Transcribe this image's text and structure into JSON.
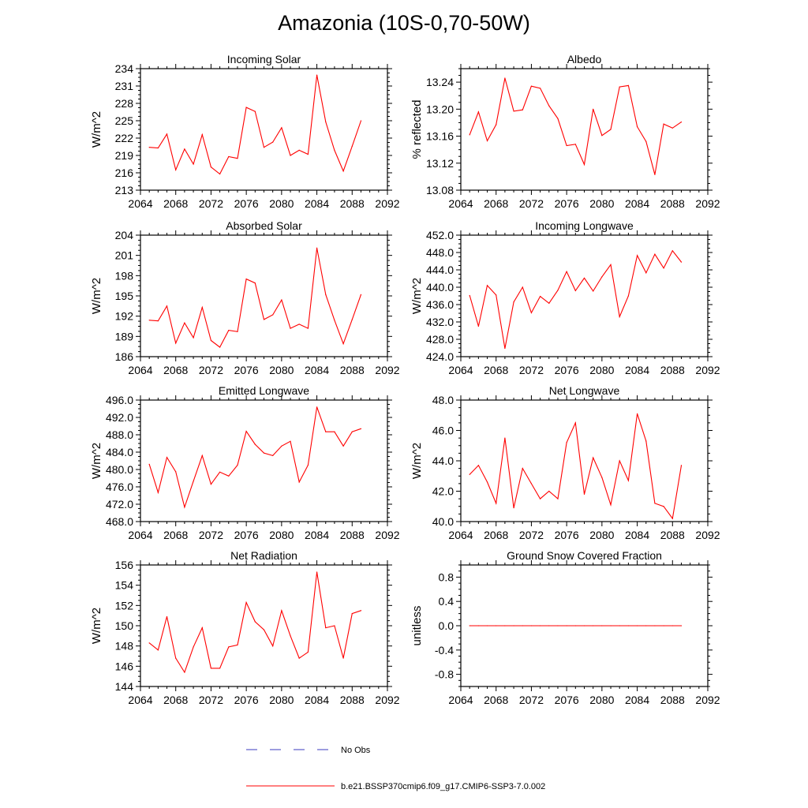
{
  "title": "Amazonia (10S-0,70-50W)",
  "colors": {
    "series": "#ff0000",
    "obs": "#3b3bbf",
    "axis": "#000000"
  },
  "legend": [
    {
      "label": "No Obs",
      "style": "dashed",
      "color": "#3b3bbf"
    },
    {
      "label": "b.e21.BSSP370cmip6.f09_g17.CMIP6-SSP3-7.0.002",
      "style": "solid",
      "color": "#ff0000"
    }
  ],
  "chart_data": [
    {
      "type": "line",
      "title": "Incoming Solar",
      "ylabel": "W/m^2",
      "xlim": [
        2064,
        2092
      ],
      "xticks": [
        2064,
        2068,
        2072,
        2076,
        2080,
        2084,
        2088,
        2092
      ],
      "ylim": [
        213,
        234
      ],
      "yticks": [
        "213",
        "216",
        "219",
        "222",
        "225",
        "228",
        "231",
        "234"
      ],
      "x": [
        2065,
        2066,
        2067,
        2068,
        2069,
        2070,
        2071,
        2072,
        2073,
        2074,
        2075,
        2076,
        2077,
        2078,
        2079,
        2080,
        2081,
        2082,
        2083,
        2084,
        2085,
        2086,
        2087,
        2088,
        2089
      ],
      "values": [
        220.4,
        220.3,
        222.7,
        216.5,
        220.1,
        217.5,
        222.6,
        217.0,
        215.8,
        218.8,
        218.5,
        227.3,
        226.6,
        220.4,
        221.3,
        223.8,
        219.0,
        219.9,
        219.2,
        232.9,
        224.8,
        219.9,
        216.3,
        220.6,
        225.0
      ]
    },
    {
      "type": "line",
      "title": "Albedo",
      "ylabel": "% reflected",
      "xlim": [
        2064,
        2092
      ],
      "xticks": [
        2064,
        2068,
        2072,
        2076,
        2080,
        2084,
        2088,
        2092
      ],
      "ylim": [
        13.08,
        13.26
      ],
      "yticks": [
        "13.08",
        "13.12",
        "13.16",
        "13.20",
        "13.24"
      ],
      "x": [
        2065,
        2066,
        2067,
        2068,
        2069,
        2070,
        2071,
        2072,
        2073,
        2074,
        2075,
        2076,
        2077,
        2078,
        2079,
        2080,
        2081,
        2082,
        2083,
        2084,
        2085,
        2086,
        2087,
        2088,
        2089
      ],
      "values": [
        13.162,
        13.196,
        13.153,
        13.177,
        13.246,
        13.197,
        13.199,
        13.234,
        13.231,
        13.205,
        13.186,
        13.146,
        13.148,
        13.118,
        13.2,
        13.161,
        13.17,
        13.233,
        13.235,
        13.174,
        13.152,
        13.103,
        13.178,
        13.172,
        13.181
      ]
    },
    {
      "type": "line",
      "title": "Absorbed Solar",
      "ylabel": "W/m^2",
      "xlim": [
        2064,
        2092
      ],
      "xticks": [
        2064,
        2068,
        2072,
        2076,
        2080,
        2084,
        2088,
        2092
      ],
      "ylim": [
        186,
        204
      ],
      "yticks": [
        "186",
        "189",
        "192",
        "195",
        "198",
        "201",
        "204"
      ],
      "x": [
        2065,
        2066,
        2067,
        2068,
        2069,
        2070,
        2071,
        2072,
        2073,
        2074,
        2075,
        2076,
        2077,
        2078,
        2079,
        2080,
        2081,
        2082,
        2083,
        2084,
        2085,
        2086,
        2087,
        2088,
        2089
      ],
      "values": [
        191.4,
        191.3,
        193.5,
        188.0,
        191.0,
        188.8,
        193.3,
        188.4,
        187.4,
        189.9,
        189.7,
        197.5,
        196.9,
        191.5,
        192.2,
        194.4,
        190.2,
        190.8,
        190.2,
        202.1,
        195.2,
        191.4,
        187.9,
        191.5,
        195.2
      ]
    },
    {
      "type": "line",
      "title": "Incoming Longwave",
      "ylabel": "W/m^2",
      "xlim": [
        2064,
        2092
      ],
      "xticks": [
        2064,
        2068,
        2072,
        2076,
        2080,
        2084,
        2088,
        2092
      ],
      "ylim": [
        424.0,
        452.0
      ],
      "yticks": [
        "424.0",
        "428.0",
        "432.0",
        "436.0",
        "440.0",
        "444.0",
        "448.0",
        "452.0"
      ],
      "x": [
        2065,
        2066,
        2067,
        2068,
        2069,
        2070,
        2071,
        2072,
        2073,
        2074,
        2075,
        2076,
        2077,
        2078,
        2079,
        2080,
        2081,
        2082,
        2083,
        2084,
        2085,
        2086,
        2087,
        2088,
        2089
      ],
      "values": [
        438.1,
        431.0,
        440.4,
        438.2,
        425.9,
        436.6,
        440.0,
        434.1,
        437.9,
        436.3,
        439.3,
        443.6,
        439.2,
        442.1,
        439.1,
        442.4,
        445.2,
        433.2,
        438.0,
        447.3,
        443.3,
        447.6,
        444.4,
        448.4,
        445.8
      ]
    },
    {
      "type": "line",
      "title": "Emitted Longwave",
      "ylabel": "W/m^2",
      "xlim": [
        2064,
        2092
      ],
      "xticks": [
        2064,
        2068,
        2072,
        2076,
        2080,
        2084,
        2088,
        2092
      ],
      "ylim": [
        468.0,
        496.0
      ],
      "yticks": [
        "468.0",
        "472.0",
        "476.0",
        "480.0",
        "484.0",
        "488.0",
        "492.0",
        "496.0"
      ],
      "x": [
        2065,
        2066,
        2067,
        2068,
        2069,
        2070,
        2071,
        2072,
        2073,
        2074,
        2075,
        2076,
        2077,
        2078,
        2079,
        2080,
        2081,
        2082,
        2083,
        2084,
        2085,
        2086,
        2087,
        2088,
        2089
      ],
      "values": [
        481.2,
        474.7,
        482.8,
        479.5,
        471.3,
        477.3,
        483.2,
        476.6,
        479.4,
        478.5,
        481.0,
        488.8,
        485.8,
        483.8,
        483.2,
        485.4,
        486.5,
        477.1,
        481.0,
        494.4,
        488.7,
        488.7,
        485.4,
        488.7,
        489.4
      ]
    },
    {
      "type": "line",
      "title": "Net Longwave",
      "ylabel": "W/m^2",
      "xlim": [
        2064,
        2092
      ],
      "xticks": [
        2064,
        2068,
        2072,
        2076,
        2080,
        2084,
        2088,
        2092
      ],
      "ylim": [
        40.0,
        48.0
      ],
      "yticks": [
        "40.0",
        "42.0",
        "44.0",
        "46.0",
        "48.0"
      ],
      "x": [
        2065,
        2066,
        2067,
        2068,
        2069,
        2070,
        2071,
        2072,
        2073,
        2074,
        2075,
        2076,
        2077,
        2078,
        2079,
        2080,
        2081,
        2082,
        2083,
        2084,
        2085,
        2086,
        2087,
        2088,
        2089
      ],
      "values": [
        43.1,
        43.7,
        42.6,
        41.2,
        45.5,
        40.9,
        43.5,
        42.5,
        41.5,
        42.0,
        41.5,
        45.2,
        46.5,
        41.8,
        44.2,
        42.9,
        41.1,
        44.0,
        42.7,
        47.1,
        45.3,
        41.2,
        41.0,
        40.2,
        43.7
      ]
    },
    {
      "type": "line",
      "title": "Net Radiation",
      "ylabel": "W/m^2",
      "xlim": [
        2064,
        2092
      ],
      "xticks": [
        2064,
        2068,
        2072,
        2076,
        2080,
        2084,
        2088,
        2092
      ],
      "ylim": [
        144,
        156
      ],
      "yticks": [
        "144",
        "146",
        "148",
        "150",
        "152",
        "154",
        "156"
      ],
      "x": [
        2065,
        2066,
        2067,
        2068,
        2069,
        2070,
        2071,
        2072,
        2073,
        2074,
        2075,
        2076,
        2077,
        2078,
        2079,
        2080,
        2081,
        2082,
        2083,
        2084,
        2085,
        2086,
        2087,
        2088,
        2089
      ],
      "values": [
        148.3,
        147.6,
        150.9,
        146.8,
        145.4,
        147.9,
        149.8,
        145.8,
        145.8,
        147.9,
        148.1,
        152.3,
        150.4,
        149.6,
        148.0,
        151.5,
        149.0,
        146.8,
        147.4,
        155.3,
        149.8,
        150.0,
        146.8,
        151.2,
        151.5
      ]
    },
    {
      "type": "line",
      "title": "Ground Snow Covered Fraction",
      "ylabel": "unitless",
      "xlim": [
        2064,
        2092
      ],
      "xticks": [
        2064,
        2068,
        2072,
        2076,
        2080,
        2084,
        2088,
        2092
      ],
      "ylim": [
        -1.0,
        1.0
      ],
      "yticks": [
        "-0.8",
        "-0.4",
        "0.0",
        "0.4",
        "0.8"
      ],
      "x": [
        2065,
        2066,
        2067,
        2068,
        2069,
        2070,
        2071,
        2072,
        2073,
        2074,
        2075,
        2076,
        2077,
        2078,
        2079,
        2080,
        2081,
        2082,
        2083,
        2084,
        2085,
        2086,
        2087,
        2088,
        2089
      ],
      "values": [
        0,
        0,
        0,
        0,
        0,
        0,
        0,
        0,
        0,
        0,
        0,
        0,
        0,
        0,
        0,
        0,
        0,
        0,
        0,
        0,
        0,
        0,
        0,
        0,
        0
      ]
    }
  ]
}
